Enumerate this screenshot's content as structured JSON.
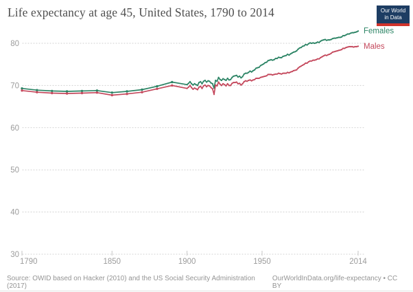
{
  "header": {
    "title": "Life expectancy at age 45, United States, 1790 to 2014",
    "logo": {
      "line1": "Our World",
      "line2": "in Data",
      "bg_color": "#1d3d63",
      "stripe_color": "#d0342c"
    }
  },
  "footer": {
    "source": "Source: OWID based on Hacker (2010) and the US Social Security Administration (2017)",
    "credit": "OurWorldInData.org/life-expectancy • CC BY"
  },
  "colors": {
    "title": "#4f4f4f",
    "grid": "#cdcdcd",
    "tick_label": "#9c9c9c",
    "footer_text": "#949494",
    "females": "#2C8465",
    "males": "#C4485C"
  },
  "chart_data": {
    "type": "line",
    "title": "Life expectancy at age 45, United States, 1790 to 2014",
    "xlabel": "",
    "ylabel": "",
    "xlim": [
      1790,
      2014
    ],
    "ylim": [
      30,
      80
    ],
    "x_ticks": [
      1790,
      1850,
      1900,
      1950,
      2014
    ],
    "y_ticks": [
      30,
      40,
      50,
      60,
      70,
      80
    ],
    "grid": "dotted-horizontal",
    "legend_position": "end-of-line",
    "annual_start": 1900,
    "series": [
      {
        "name": "Females",
        "color": "#2C8465",
        "points": [
          [
            1790,
            69.3
          ],
          [
            1800,
            68.9
          ],
          [
            1810,
            68.7
          ],
          [
            1820,
            68.6
          ],
          [
            1830,
            68.7
          ],
          [
            1840,
            68.8
          ],
          [
            1850,
            68.3
          ],
          [
            1860,
            68.6
          ],
          [
            1870,
            69.0
          ],
          [
            1880,
            69.8
          ],
          [
            1890,
            70.8
          ],
          [
            1900,
            70.2
          ],
          [
            1901,
            70.5
          ],
          [
            1902,
            70.9
          ],
          [
            1903,
            70.4
          ],
          [
            1904,
            70.1
          ],
          [
            1905,
            70.4
          ],
          [
            1906,
            70.2
          ],
          [
            1907,
            70.0
          ],
          [
            1908,
            70.7
          ],
          [
            1909,
            70.9
          ],
          [
            1910,
            70.4
          ],
          [
            1911,
            71.0
          ],
          [
            1912,
            71.2
          ],
          [
            1913,
            70.8
          ],
          [
            1914,
            71.1
          ],
          [
            1915,
            71.0
          ],
          [
            1916,
            70.6
          ],
          [
            1917,
            70.4
          ],
          [
            1918,
            69.4
          ],
          [
            1919,
            71.2
          ],
          [
            1920,
            71.0
          ],
          [
            1921,
            71.9
          ],
          [
            1922,
            71.4
          ],
          [
            1923,
            71.2
          ],
          [
            1924,
            71.6
          ],
          [
            1925,
            71.4
          ],
          [
            1926,
            71.2
          ],
          [
            1927,
            71.7
          ],
          [
            1928,
            71.3
          ],
          [
            1929,
            71.4
          ],
          [
            1930,
            71.9
          ],
          [
            1931,
            72.2
          ],
          [
            1932,
            72.3
          ],
          [
            1933,
            72.4
          ],
          [
            1934,
            72.0
          ],
          [
            1935,
            72.2
          ],
          [
            1936,
            71.8
          ],
          [
            1937,
            72.1
          ],
          [
            1938,
            72.7
          ],
          [
            1939,
            72.9
          ],
          [
            1940,
            72.9
          ],
          [
            1941,
            73.1
          ],
          [
            1942,
            73.4
          ],
          [
            1943,
            73.2
          ],
          [
            1944,
            73.5
          ],
          [
            1945,
            73.7
          ],
          [
            1946,
            74.1
          ],
          [
            1947,
            74.2
          ],
          [
            1948,
            74.3
          ],
          [
            1949,
            74.7
          ],
          [
            1950,
            74.9
          ],
          [
            1951,
            75.1
          ],
          [
            1952,
            75.4
          ],
          [
            1953,
            75.5
          ],
          [
            1954,
            75.9
          ],
          [
            1955,
            76.0
          ],
          [
            1956,
            76.1
          ],
          [
            1957,
            76.0
          ],
          [
            1958,
            76.1
          ],
          [
            1959,
            76.4
          ],
          [
            1960,
            76.4
          ],
          [
            1961,
            76.7
          ],
          [
            1962,
            76.6
          ],
          [
            1963,
            76.6
          ],
          [
            1964,
            76.9
          ],
          [
            1965,
            77.0
          ],
          [
            1966,
            77.1
          ],
          [
            1967,
            77.4
          ],
          [
            1968,
            77.2
          ],
          [
            1969,
            77.5
          ],
          [
            1970,
            77.7
          ],
          [
            1971,
            77.9
          ],
          [
            1972,
            78.0
          ],
          [
            1973,
            78.2
          ],
          [
            1974,
            78.6
          ],
          [
            1975,
            78.9
          ],
          [
            1976,
            79.0
          ],
          [
            1977,
            79.3
          ],
          [
            1978,
            79.4
          ],
          [
            1979,
            79.7
          ],
          [
            1980,
            79.6
          ],
          [
            1981,
            79.9
          ],
          [
            1982,
            80.1
          ],
          [
            1983,
            80.0
          ],
          [
            1984,
            80.1
          ],
          [
            1985,
            80.0
          ],
          [
            1986,
            80.1
          ],
          [
            1987,
            80.3
          ],
          [
            1988,
            80.2
          ],
          [
            1989,
            80.5
          ],
          [
            1990,
            80.7
          ],
          [
            1991,
            80.8
          ],
          [
            1992,
            80.9
          ],
          [
            1993,
            80.7
          ],
          [
            1994,
            80.8
          ],
          [
            1995,
            80.8
          ],
          [
            1996,
            80.9
          ],
          [
            1997,
            81.1
          ],
          [
            1998,
            81.2
          ],
          [
            1999,
            81.2
          ],
          [
            2000,
            81.3
          ],
          [
            2001,
            81.4
          ],
          [
            2002,
            81.4
          ],
          [
            2003,
            81.5
          ],
          [
            2004,
            81.8
          ],
          [
            2005,
            81.8
          ],
          [
            2006,
            82.0
          ],
          [
            2007,
            82.2
          ],
          [
            2008,
            82.2
          ],
          [
            2009,
            82.4
          ],
          [
            2010,
            82.5
          ],
          [
            2011,
            82.5
          ],
          [
            2012,
            82.6
          ],
          [
            2013,
            82.7
          ],
          [
            2014,
            82.9
          ]
        ]
      },
      {
        "name": "Males",
        "color": "#C4485C",
        "points": [
          [
            1790,
            68.8
          ],
          [
            1800,
            68.4
          ],
          [
            1810,
            68.2
          ],
          [
            1820,
            68.1
          ],
          [
            1830,
            68.2
          ],
          [
            1840,
            68.3
          ],
          [
            1850,
            67.7
          ],
          [
            1860,
            68.0
          ],
          [
            1870,
            68.4
          ],
          [
            1880,
            69.2
          ],
          [
            1890,
            70.0
          ],
          [
            1900,
            69.3
          ],
          [
            1901,
            69.6
          ],
          [
            1902,
            70.0
          ],
          [
            1903,
            69.5
          ],
          [
            1904,
            69.1
          ],
          [
            1905,
            69.4
          ],
          [
            1906,
            69.2
          ],
          [
            1907,
            69.0
          ],
          [
            1908,
            69.6
          ],
          [
            1909,
            69.8
          ],
          [
            1910,
            69.3
          ],
          [
            1911,
            69.9
          ],
          [
            1912,
            70.1
          ],
          [
            1913,
            69.7
          ],
          [
            1914,
            70.0
          ],
          [
            1915,
            69.9
          ],
          [
            1916,
            69.5
          ],
          [
            1917,
            69.2
          ],
          [
            1918,
            67.9
          ],
          [
            1919,
            70.1
          ],
          [
            1920,
            69.9
          ],
          [
            1921,
            70.8
          ],
          [
            1922,
            70.3
          ],
          [
            1923,
            70.0
          ],
          [
            1924,
            70.4
          ],
          [
            1925,
            70.2
          ],
          [
            1926,
            69.9
          ],
          [
            1927,
            70.4
          ],
          [
            1928,
            70.0
          ],
          [
            1929,
            70.0
          ],
          [
            1930,
            70.5
          ],
          [
            1931,
            70.7
          ],
          [
            1932,
            70.7
          ],
          [
            1933,
            70.8
          ],
          [
            1934,
            70.4
          ],
          [
            1935,
            70.5
          ],
          [
            1936,
            70.1
          ],
          [
            1937,
            70.4
          ],
          [
            1938,
            70.9
          ],
          [
            1939,
            71.1
          ],
          [
            1940,
            71.0
          ],
          [
            1941,
            71.2
          ],
          [
            1942,
            71.3
          ],
          [
            1943,
            71.1
          ],
          [
            1944,
            71.3
          ],
          [
            1945,
            71.4
          ],
          [
            1946,
            71.7
          ],
          [
            1947,
            71.7
          ],
          [
            1948,
            71.7
          ],
          [
            1949,
            71.9
          ],
          [
            1950,
            72.0
          ],
          [
            1951,
            72.1
          ],
          [
            1952,
            72.2
          ],
          [
            1953,
            72.3
          ],
          [
            1954,
            72.6
          ],
          [
            1955,
            72.6
          ],
          [
            1956,
            72.6
          ],
          [
            1957,
            72.5
          ],
          [
            1958,
            72.6
          ],
          [
            1959,
            72.7
          ],
          [
            1960,
            72.7
          ],
          [
            1961,
            72.9
          ],
          [
            1962,
            72.8
          ],
          [
            1963,
            72.7
          ],
          [
            1964,
            72.9
          ],
          [
            1965,
            72.9
          ],
          [
            1966,
            72.9
          ],
          [
            1967,
            73.1
          ],
          [
            1968,
            73.0
          ],
          [
            1969,
            73.2
          ],
          [
            1970,
            73.3
          ],
          [
            1971,
            73.5
          ],
          [
            1972,
            73.6
          ],
          [
            1973,
            73.7
          ],
          [
            1974,
            74.1
          ],
          [
            1975,
            74.4
          ],
          [
            1976,
            74.6
          ],
          [
            1977,
            74.8
          ],
          [
            1978,
            75.0
          ],
          [
            1979,
            75.3
          ],
          [
            1980,
            75.3
          ],
          [
            1981,
            75.6
          ],
          [
            1982,
            75.8
          ],
          [
            1983,
            75.8
          ],
          [
            1984,
            76.0
          ],
          [
            1985,
            76.0
          ],
          [
            1986,
            76.1
          ],
          [
            1987,
            76.3
          ],
          [
            1988,
            76.3
          ],
          [
            1989,
            76.6
          ],
          [
            1990,
            76.8
          ],
          [
            1991,
            77.0
          ],
          [
            1992,
            77.2
          ],
          [
            1993,
            77.1
          ],
          [
            1994,
            77.3
          ],
          [
            1995,
            77.4
          ],
          [
            1996,
            77.6
          ],
          [
            1997,
            77.9
          ],
          [
            1998,
            78.0
          ],
          [
            1999,
            78.1
          ],
          [
            2000,
            78.2
          ],
          [
            2001,
            78.3
          ],
          [
            2002,
            78.4
          ],
          [
            2003,
            78.5
          ],
          [
            2004,
            78.8
          ],
          [
            2005,
            78.8
          ],
          [
            2006,
            79.0
          ],
          [
            2007,
            79.1
          ],
          [
            2008,
            79.2
          ],
          [
            2009,
            79.2
          ],
          [
            2010,
            79.2
          ],
          [
            2011,
            79.1
          ],
          [
            2012,
            79.2
          ],
          [
            2013,
            79.2
          ],
          [
            2014,
            79.3
          ]
        ]
      }
    ]
  }
}
